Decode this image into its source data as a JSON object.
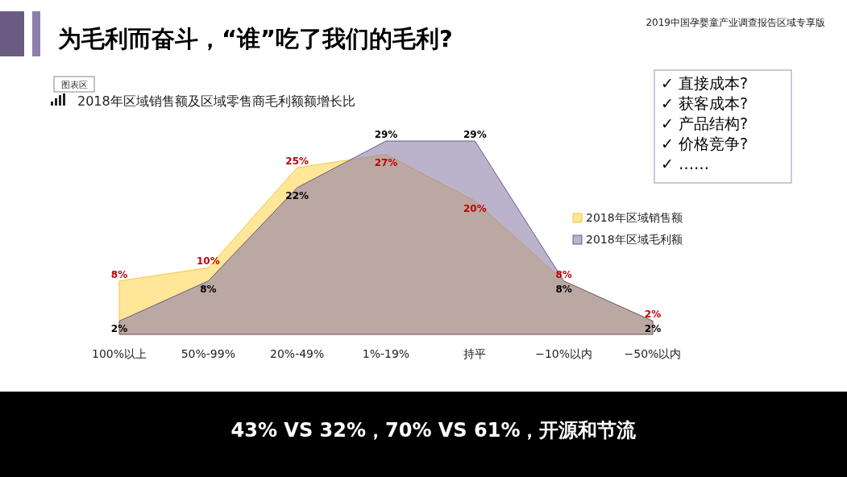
{
  "chart_data": {
    "type": "area",
    "title": "为毛利而奋斗，“谁”吃了我们的毛利?",
    "subtitle": "2018年区域销售额及区域零售商毛利额额增长比",
    "categories": [
      "100%以上",
      "50%-99%",
      "20%-49%",
      "1%-19%",
      "持平",
      "−10%以内",
      "−50%以内"
    ],
    "series": [
      {
        "name": "2018年区域销售额",
        "color": "#ffe699",
        "values": [
          8,
          10,
          25,
          27,
          20,
          8,
          2
        ],
        "value_labels": [
          "8%",
          "10%",
          "25%",
          "27%",
          "20%",
          "8%",
          "2%"
        ]
      },
      {
        "name": "2018年区域毛利额",
        "color": "#8e7faa",
        "values": [
          2,
          8,
          22,
          29,
          29,
          8,
          2
        ],
        "value_labels": [
          "2%",
          "8%",
          "22%",
          "29%",
          "29%",
          "8%",
          "2%"
        ]
      }
    ],
    "legend": "right",
    "annotations": [
      "2019中国孕婴童产业调查报告区域专享版",
      "图表区",
      "✓  直接成本?",
      "✓  获客成本?",
      "✓  产品结构?",
      "✓  价格竞争?",
      "✓  ……",
      "43% VS 32%，70% VS 61%，开源和节流"
    ]
  }
}
